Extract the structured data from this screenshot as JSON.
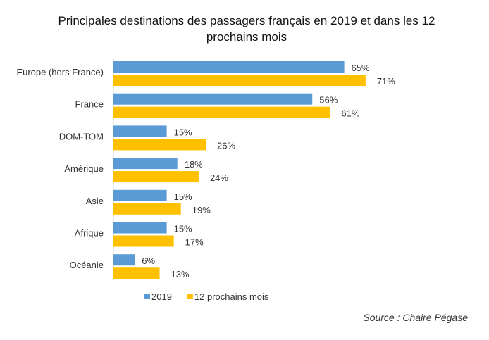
{
  "chart_data": {
    "type": "bar",
    "orientation": "horizontal",
    "title": "Principales destinations des passagers français en 2019 et dans les 12 prochains mois",
    "categories": [
      "Europe (hors France)",
      "France",
      "DOM-TOM",
      "Amérique",
      "Asie",
      "Afrique",
      "Océanie"
    ],
    "series": [
      {
        "name": "2019",
        "color": "#5B9BD5",
        "values": [
          65,
          56,
          15,
          18,
          15,
          15,
          6
        ]
      },
      {
        "name": "12 prochains mois",
        "color": "#FFC000",
        "values": [
          71,
          61,
          26,
          24,
          19,
          17,
          13
        ]
      }
    ],
    "value_suffix": "%",
    "xlim": [
      0,
      100
    ],
    "grid": false,
    "legend": "bottom",
    "source": "Source : Chaire Pégase"
  }
}
